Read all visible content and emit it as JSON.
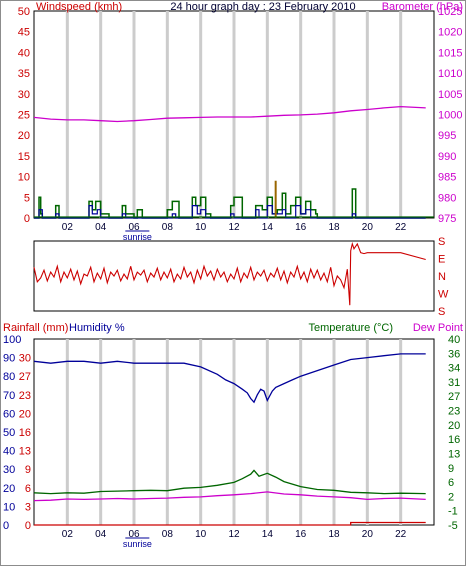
{
  "colors": {
    "wind_axis": "#cc0000",
    "baro_axis": "#cc00cc",
    "gust": "#006600",
    "avg": "#000099",
    "baro_line": "#cc00cc",
    "direction_line": "#cc0000",
    "humidity_line": "#000099",
    "temperature_line": "#006600",
    "dewpoint_line": "#cc00cc",
    "rain_line": "#cc0000",
    "temp_axis": "#006600",
    "grid": "#cccccc",
    "sunrise": "#000099"
  },
  "chart_data": [
    {
      "type": "line",
      "title": "24 hour graph day : 23 February 2010",
      "ylabel_left": "Windspeed (kmh)",
      "ylabel_right": "Barometer (hPa)",
      "x_ticks": [
        "02",
        "04",
        "06",
        "08",
        "10",
        "12",
        "14",
        "16",
        "18",
        "20",
        "22"
      ],
      "x_tick_hours": [
        2,
        4,
        6,
        8,
        10,
        12,
        14,
        16,
        18,
        20,
        22
      ],
      "xlim": [
        0,
        24
      ],
      "sunrise_label": "sunrise",
      "sunrise_hour": 6.2,
      "ylim_left": [
        0,
        50
      ],
      "y_ticks_left": [
        "0",
        "5",
        "10",
        "15",
        "20",
        "25",
        "30",
        "35",
        "40",
        "45",
        "50"
      ],
      "ylim_right": [
        975,
        1025
      ],
      "y_ticks_right": [
        "975",
        "980",
        "985",
        "990",
        "995",
        "1000",
        "1005",
        "1010",
        "1015",
        "1020",
        "1025"
      ],
      "series": [
        {
          "axis": "right",
          "x": [
            0,
            1,
            2,
            3,
            4,
            5,
            6,
            7,
            8,
            9,
            10,
            11,
            12,
            13,
            14,
            15,
            16,
            17,
            18,
            19,
            20,
            21,
            22,
            23.5
          ],
          "values": [
            999.3,
            998.9,
            998.7,
            998.7,
            998.5,
            998.3,
            998.5,
            998.8,
            999.1,
            999.2,
            999.3,
            999.4,
            999.4,
            999.4,
            999.6,
            999.8,
            999.9,
            1000.1,
            1000.4,
            1000.9,
            1001.2,
            1001.6,
            1001.9,
            1001.6
          ]
        },
        {
          "axis": "left",
          "x": [
            0,
            0.3,
            0.4,
            0.5,
            1.0,
            1.3,
            1.5,
            2.0,
            3.0,
            3.3,
            3.5,
            3.7,
            4.0,
            4.5,
            5.0,
            5.3,
            5.5,
            6.0,
            6.2,
            6.5,
            7.0,
            7.7,
            8.0,
            8.3,
            8.7,
            9.2,
            9.5,
            9.7,
            10.0,
            10.3,
            10.6,
            11.0,
            11.5,
            11.8,
            12.0,
            12.5,
            13.0,
            13.3,
            13.7,
            14.0,
            14.3,
            14.6,
            14.9,
            15.1,
            15.4,
            15.7,
            16.0,
            16.3,
            16.6,
            16.9,
            17.0,
            19.0,
            19.1,
            19.3,
            20.0,
            23.5
          ],
          "values": [
            0,
            5,
            1,
            0,
            0,
            3,
            0,
            0,
            0,
            4,
            2,
            4,
            1,
            0,
            0,
            3,
            1,
            0,
            2,
            0,
            0,
            0,
            2,
            4,
            0,
            0,
            5,
            3,
            5,
            1,
            0,
            0,
            0,
            3,
            5,
            0,
            0,
            3,
            2,
            5,
            1,
            2,
            6,
            1,
            3,
            5,
            1,
            4,
            2,
            1,
            0,
            0,
            7,
            0,
            0,
            0
          ]
        },
        {
          "axis": "left",
          "x": [
            0,
            0.3,
            0.5,
            1.3,
            1.5,
            3.3,
            3.5,
            3.8,
            4.0,
            5.3,
            5.5,
            8.3,
            8.5,
            9.5,
            9.8,
            10.0,
            10.3,
            11.8,
            12.0,
            13.3,
            13.5,
            14.0,
            14.3,
            14.9,
            15.1,
            15.7,
            16.0,
            16.3,
            16.6,
            17.0,
            19.1,
            19.3,
            23.5
          ],
          "values": [
            0,
            2,
            0,
            1,
            0,
            3,
            1,
            2,
            0,
            1,
            0,
            1,
            0,
            3,
            1,
            2,
            0,
            1,
            0,
            2,
            0,
            3,
            1,
            2,
            0,
            3,
            1,
            2,
            0,
            0,
            1,
            0,
            0
          ]
        }
      ],
      "legend": "none",
      "grid": true
    },
    {
      "type": "line",
      "title": "",
      "ylabel_right_ticks": [
        "S",
        "E",
        "N",
        "W",
        "S"
      ],
      "ylim": [
        0,
        360
      ],
      "xlim": [
        0,
        24
      ],
      "series": [
        {
          "x": [
            0,
            0.2,
            0.4,
            0.6,
            0.8,
            1.0,
            1.2,
            1.4,
            1.6,
            1.8,
            2.0,
            2.2,
            2.4,
            2.6,
            2.8,
            3.0,
            3.2,
            3.4,
            3.6,
            3.8,
            4.0,
            4.2,
            4.4,
            4.6,
            4.8,
            5.0,
            5.2,
            5.4,
            5.6,
            5.8,
            6.0,
            6.2,
            6.4,
            6.6,
            6.8,
            7.0,
            7.2,
            7.4,
            7.6,
            7.8,
            8.0,
            8.2,
            8.4,
            8.6,
            8.8,
            9.0,
            9.2,
            9.4,
            9.6,
            9.8,
            10.0,
            10.2,
            10.4,
            10.6,
            10.8,
            11.0,
            11.2,
            11.4,
            11.6,
            11.8,
            12.0,
            12.2,
            12.4,
            12.6,
            12.8,
            13.0,
            13.2,
            13.4,
            13.6,
            13.8,
            14.0,
            14.2,
            14.4,
            14.6,
            14.8,
            15.0,
            15.2,
            15.4,
            15.6,
            15.8,
            16.0,
            16.2,
            16.4,
            16.6,
            16.8,
            17.0,
            17.2,
            17.4,
            17.6,
            17.8,
            18.0,
            18.2,
            18.4,
            18.6,
            18.8,
            18.95,
            19.0,
            19.1,
            19.2,
            19.4,
            19.6,
            19.8,
            20.0,
            21.0,
            22.0,
            23.5
          ],
          "values": [
            225,
            150,
            170,
            210,
            155,
            200,
            175,
            230,
            150,
            200,
            170,
            215,
            160,
            205,
            140,
            190,
            180,
            225,
            150,
            195,
            165,
            220,
            145,
            200,
            180,
            210,
            155,
            190,
            165,
            230,
            160,
            200,
            185,
            210,
            150,
            195,
            175,
            220,
            160,
            200,
            170,
            215,
            150,
            190,
            165,
            225,
            175,
            200,
            145,
            210,
            165,
            230,
            180,
            205,
            160,
            215,
            175,
            200,
            150,
            190,
            165,
            220,
            150,
            195,
            170,
            225,
            160,
            200,
            180,
            210,
            155,
            195,
            175,
            220,
            160,
            205,
            145,
            200,
            175,
            230,
            165,
            200,
            150,
            215,
            170,
            210,
            160,
            195,
            150,
            225,
            130,
            180,
            160,
            120,
            215,
            30,
            310,
            345,
            320,
            345,
            300,
            295,
            300,
            300,
            300,
            265
          ]
        }
      ],
      "legend": "none",
      "grid": false
    },
    {
      "type": "line",
      "title": "",
      "ylabel_left_rain": "Rainfall (mm)",
      "ylabel_left_humidity": "Humidity %",
      "ylabel_right_temp": "Temperature (°C)",
      "ylabel_right_dew": "Dew Point",
      "x_ticks": [
        "02",
        "04",
        "06",
        "08",
        "10",
        "12",
        "14",
        "16",
        "18",
        "20",
        "22"
      ],
      "sunrise_label": "sunrise",
      "ylim_humidity": [
        0,
        100
      ],
      "y_ticks_humidity": [
        "0",
        "10",
        "20",
        "30",
        "40",
        "50",
        "60",
        "70",
        "80",
        "90",
        "100"
      ],
      "y_ticks_rain": [
        "0",
        "3",
        "6",
        "9",
        "13",
        "16",
        "20",
        "23",
        "27",
        "30"
      ],
      "ylim_temp": [
        -5,
        40
      ],
      "y_ticks_temp": [
        "-5",
        "-1",
        "2",
        "6",
        "9",
        "13",
        "16",
        "20",
        "23",
        "27",
        "31",
        "34",
        "36",
        "40"
      ],
      "series": [
        {
          "axis": "humidity",
          "x": [
            0,
            1,
            2,
            3,
            4,
            5,
            6,
            7,
            8,
            9,
            10,
            11,
            11.5,
            12,
            12.5,
            12.8,
            13.0,
            13.2,
            13.4,
            13.6,
            13.8,
            14.0,
            14.3,
            14.5,
            15.0,
            15.5,
            16.0,
            17.0,
            18.0,
            19.0,
            20.0,
            21.0,
            22.0,
            23.0,
            23.5
          ],
          "values": [
            88,
            87,
            88,
            88,
            87,
            88,
            87,
            87,
            87,
            87,
            85,
            81,
            78,
            76,
            73,
            71,
            68,
            66,
            70,
            73,
            72,
            67,
            72,
            74,
            76,
            78,
            80,
            83,
            86,
            89,
            90,
            91,
            92,
            92,
            92
          ]
        },
        {
          "axis": "temp",
          "x": [
            0,
            1,
            2,
            3,
            4,
            5,
            6,
            7,
            8,
            9,
            10,
            11,
            12,
            12.5,
            13.0,
            13.2,
            13.5,
            14.0,
            14.5,
            15.0,
            16.0,
            17.0,
            18.0,
            19.0,
            20.0,
            21.0,
            22.0,
            23.5
          ],
          "values": [
            2.8,
            2.6,
            2.8,
            2.7,
            3.1,
            3.2,
            3.3,
            3.4,
            3.3,
            3.9,
            4.1,
            4.6,
            5.3,
            6.2,
            7.3,
            8.2,
            6.8,
            7.5,
            6.6,
            5.5,
            4.3,
            3.6,
            3.4,
            2.9,
            2.8,
            2.6,
            2.7,
            2.6
          ]
        },
        {
          "axis": "temp",
          "x": [
            0,
            1,
            2,
            3,
            4,
            5,
            6,
            7,
            8,
            9,
            10,
            11,
            12,
            13,
            14,
            15,
            16,
            17,
            18,
            19,
            20,
            21,
            22,
            23.5
          ],
          "values": [
            0.9,
            1.0,
            1.3,
            1.2,
            1.3,
            1.4,
            1.3,
            1.4,
            1.5,
            1.7,
            1.8,
            2.1,
            2.3,
            2.6,
            3.0,
            2.5,
            2.3,
            2.0,
            1.8,
            1.6,
            1.2,
            1.4,
            1.5,
            1.2
          ]
        },
        {
          "axis": "rain",
          "x": [
            0,
            18.9,
            19.0,
            23.5
          ],
          "values": [
            0,
            0,
            0.4,
            0.4
          ]
        }
      ],
      "legend": "none",
      "grid": true
    }
  ]
}
